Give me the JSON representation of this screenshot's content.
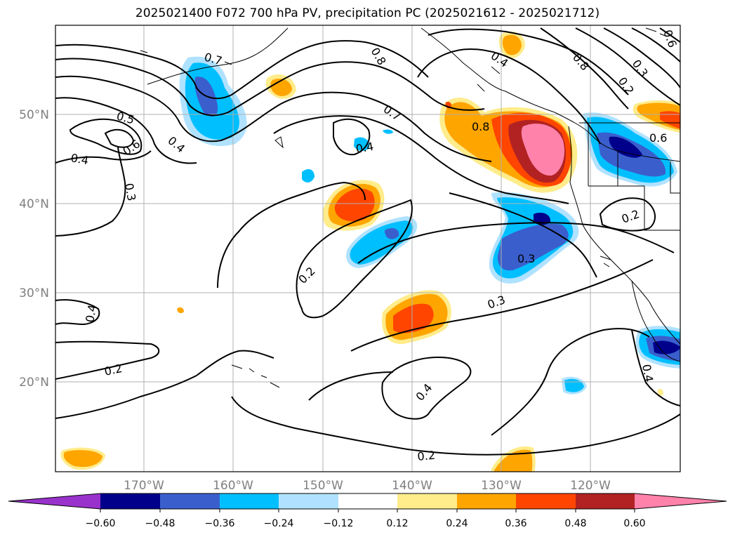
{
  "title": "2025021400 F072 700 hPa PV, precipitation PC (2025021612 - 2025021712)",
  "map": {
    "lat_labels": [
      "50°N",
      "40°N",
      "30°N",
      "20°N"
    ],
    "lon_labels": [
      "170°W",
      "160°W",
      "150°W",
      "140°W",
      "130°W",
      "120°W"
    ],
    "contour_labels": [
      "0.7",
      "0.8",
      "0.5",
      "0.6",
      "0.4",
      "0.4",
      "0.3",
      "0.7",
      "0.4",
      "0.8",
      "0.8",
      "0.2",
      "0.3",
      "0.4",
      "0.2",
      "0.3",
      "0.4",
      "0.2",
      "0.4",
      "0.2",
      "0.3",
      "0.2",
      "0.4",
      "0.6",
      "0.6"
    ]
  },
  "colorbar": {
    "colors": [
      "#9932cc",
      "#00008b",
      "#3a5fcd",
      "#00bfff",
      "#b0e2ff",
      "#ffffff",
      "#ffec8b",
      "#ffa500",
      "#ff4500",
      "#b22222",
      "#ff82ab"
    ],
    "tick_labels": [
      "−0.60",
      "−0.48",
      "−0.36",
      "−0.24",
      "−0.12",
      "0.12",
      "0.24",
      "0.36",
      "0.48",
      "0.60"
    ]
  }
}
